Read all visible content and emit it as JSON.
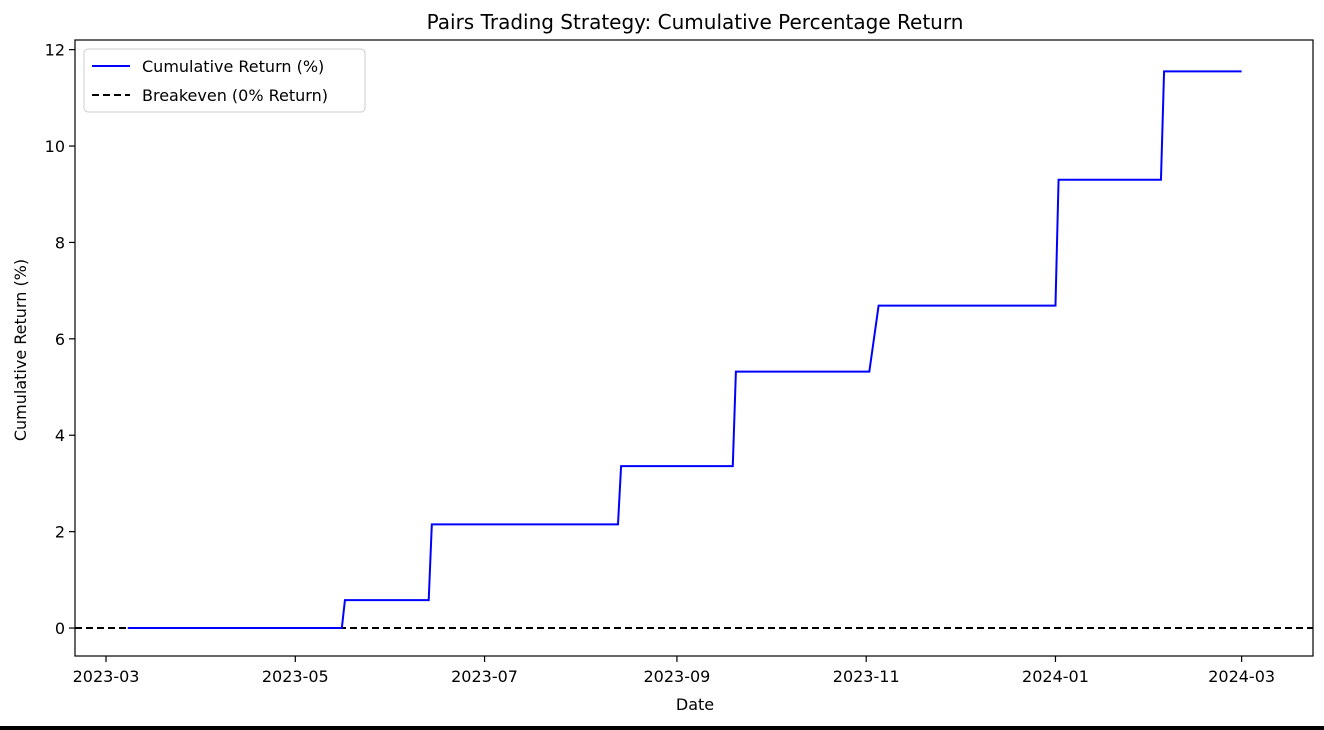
{
  "chart_data": {
    "type": "line",
    "title": "Pairs Trading Strategy: Cumulative Percentage Return",
    "xlabel": "Date",
    "ylabel": "Cumulative Return (%)",
    "xlim": [
      "2023-02-19",
      "2024-03-24"
    ],
    "ylim": [
      -0.58,
      12.2
    ],
    "x_ticks": [
      "2023-03",
      "2023-05",
      "2023-07",
      "2023-09",
      "2023-11",
      "2024-01",
      "2024-03"
    ],
    "y_ticks": [
      0,
      2,
      4,
      6,
      8,
      10,
      12
    ],
    "grid": false,
    "legend": {
      "placement": "upper-left",
      "entries": [
        "Cumulative Return (%)",
        "Breakeven (0% Return)"
      ]
    },
    "series": [
      {
        "name": "Cumulative Return (%)",
        "color": "#0000ff",
        "style": "solid",
        "points": [
          [
            "2023-03-08",
            0.0
          ],
          [
            "2023-05-16",
            0.0
          ],
          [
            "2023-05-17",
            0.58
          ],
          [
            "2023-06-13",
            0.58
          ],
          [
            "2023-06-14",
            2.15
          ],
          [
            "2023-08-13",
            2.15
          ],
          [
            "2023-08-14",
            3.36
          ],
          [
            "2023-09-19",
            3.36
          ],
          [
            "2023-09-20",
            5.32
          ],
          [
            "2023-11-02",
            5.32
          ],
          [
            "2023-11-05",
            6.69
          ],
          [
            "2024-01-01",
            6.69
          ],
          [
            "2024-01-02",
            9.3
          ],
          [
            "2024-02-04",
            9.3
          ],
          [
            "2024-02-05",
            11.55
          ],
          [
            "2024-03-01",
            11.55
          ]
        ]
      },
      {
        "name": "Breakeven (0% Return)",
        "color": "#000000",
        "style": "dashed",
        "value": 0
      }
    ]
  }
}
